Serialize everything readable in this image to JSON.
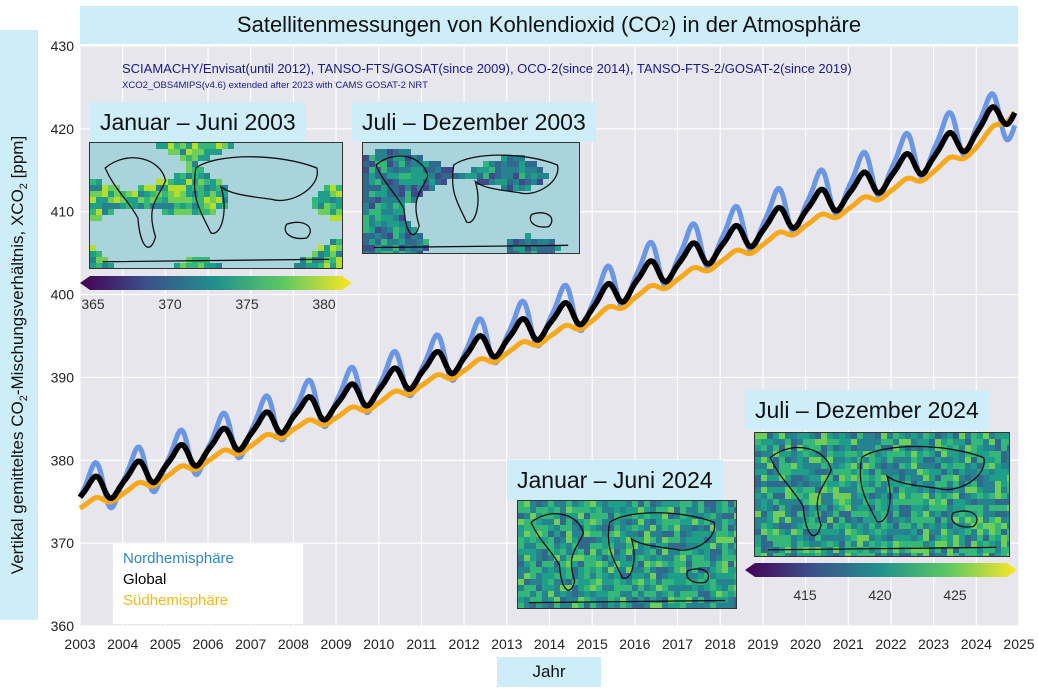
{
  "title": "Satellitenmessungen von Kohlendioxid (CO",
  "title_sub": "2",
  "title_end": ") in der Atmosphäre",
  "ylabel_pre": "Vertikal gemitteltes CO",
  "ylabel_sub1": "2",
  "ylabel_mid": "-Mischungsverhältnis, XCO",
  "ylabel_sub2": "2",
  "ylabel_end": " [ppm]",
  "xlabel": "Jahr",
  "source_line1": "SCIAMACHY/Envisat(until 2012), TANSO-FTS/GOSAT(since 2009), OCO-2(since 2014), TANSO-FTS-2/GOSAT-2(since 2019)",
  "source_line2": "XCO2_OBS4MIPS(v4.6) extended after 2023 with CAMS GOSAT-2 NRT",
  "insets": {
    "jan2003": "Januar – Juni 2003",
    "jul2003": "Juli – Dezember 2003",
    "jan2024": "Januar – Juni 2024",
    "jul2024": "Juli – Dezember 2024"
  },
  "colorbar_2003": {
    "ticks": [
      "365",
      "370",
      "375",
      "380"
    ]
  },
  "colorbar_2024": {
    "ticks": [
      "415",
      "420",
      "425"
    ]
  },
  "legend": {
    "north": "Nordhemisphäre",
    "global": "Global",
    "south": "Südhemisphäre"
  },
  "colors": {
    "north": "#6a96e4",
    "global": "#000000",
    "south": "#f7a81b",
    "label_bg": "#cdeef9",
    "plot_bg": "#e6e6ec",
    "north_text": "#2a88c6",
    "south_text": "#f2b81c"
  },
  "chart_data": {
    "type": "line",
    "title": "Satellitenmessungen von Kohlendioxid (CO2) in der Atmosphäre",
    "xlabel": "Jahr",
    "ylabel": "Vertikal gemitteltes CO2-Mischungsverhältnis, XCO2 [ppm]",
    "xlim": [
      2003,
      2025
    ],
    "ylim": [
      360,
      430
    ],
    "x_ticks": [
      "2003",
      "2004",
      "2005",
      "2006",
      "2007",
      "2008",
      "2009",
      "2010",
      "2011",
      "2012",
      "2013",
      "2014",
      "2015",
      "2016",
      "2017",
      "2018",
      "2019",
      "2020",
      "2021",
      "2022",
      "2023",
      "2024",
      "2025"
    ],
    "y_ticks": [
      "360",
      "370",
      "380",
      "390",
      "400",
      "410",
      "420",
      "430"
    ],
    "grid": true,
    "legend_position": "bottom-left",
    "x": [
      2003.0,
      2004.0,
      2005.0,
      2006.0,
      2007.0,
      2008.0,
      2009.0,
      2010.0,
      2011.0,
      2012.0,
      2013.0,
      2014.0,
      2015.0,
      2016.0,
      2017.0,
      2018.0,
      2019.0,
      2020.0,
      2021.0,
      2022.0,
      2023.0,
      2024.0,
      2024.9
    ],
    "series": [
      {
        "name": "Nordhemisphäre",
        "values": [
          376.0,
          377.8,
          379.8,
          381.9,
          383.9,
          386.1,
          387.5,
          389.3,
          391.4,
          393.2,
          395.4,
          397.4,
          399.2,
          402.4,
          404.7,
          406.8,
          408.9,
          411.2,
          413.3,
          415.5,
          417.9,
          420.6,
          422.0
        ]
      },
      {
        "name": "Global",
        "values": [
          375.8,
          377.5,
          379.5,
          381.5,
          383.4,
          385.5,
          386.9,
          388.7,
          390.8,
          392.6,
          394.7,
          396.7,
          398.5,
          401.6,
          403.8,
          405.9,
          408.0,
          410.3,
          412.3,
          414.5,
          416.8,
          419.7,
          422.8
        ]
      },
      {
        "name": "Südhemisphäre",
        "values": [
          374.3,
          376.0,
          378.0,
          380.0,
          381.8,
          383.8,
          385.2,
          387.0,
          389.1,
          390.9,
          393.0,
          395.0,
          396.9,
          399.7,
          401.9,
          404.0,
          406.1,
          408.4,
          410.4,
          412.6,
          414.9,
          417.8,
          422.3
        ]
      }
    ],
    "seasonal_amplitude": [
      2.8,
      1.5,
      0.5
    ]
  }
}
